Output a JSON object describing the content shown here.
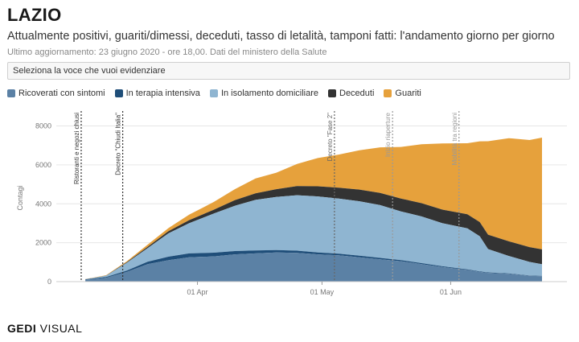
{
  "header": {
    "title": "LAZIO",
    "subtitle": "Attualmente positivi, guariti/dimessi, deceduti, tasso di letalità, tamponi fatti: l'andamento giorno per giorno",
    "updated": "Ultimo aggiornamento: 23 giugno 2020 - ore 18,00. Dati del ministero della Salute"
  },
  "selector": {
    "label": "Seleziona la voce che vuoi evidenziare"
  },
  "brand": {
    "part1": "GEDI",
    "part2": "VISUAL"
  },
  "chart_data": {
    "type": "area",
    "stacked": true,
    "x": [
      "2020-03-05",
      "2020-03-10",
      "2020-03-15",
      "2020-03-20",
      "2020-03-25",
      "2020-03-30",
      "2020-04-05",
      "2020-04-10",
      "2020-04-15",
      "2020-04-20",
      "2020-04-25",
      "2020-04-30",
      "2020-05-05",
      "2020-05-10",
      "2020-05-15",
      "2020-05-20",
      "2020-05-25",
      "2020-05-30",
      "2020-06-05",
      "2020-06-08",
      "2020-06-10",
      "2020-06-15",
      "2020-06-20",
      "2020-06-23"
    ],
    "series": [
      {
        "name": "Ricoverati con sintomi",
        "color": "#5b81a5",
        "values": [
          100,
          200,
          500,
          900,
          1100,
          1250,
          1300,
          1400,
          1450,
          1500,
          1480,
          1400,
          1350,
          1250,
          1150,
          1050,
          900,
          750,
          600,
          500,
          450,
          400,
          300,
          280
        ]
      },
      {
        "name": "In terapia intensiva",
        "color": "#1f4e79",
        "values": [
          20,
          40,
          70,
          120,
          180,
          200,
          190,
          170,
          150,
          120,
          110,
          100,
          90,
          80,
          70,
          60,
          50,
          40,
          30,
          30,
          25,
          20,
          15,
          15
        ]
      },
      {
        "name": "In isolamento domiciliare",
        "color": "#8fb5d1",
        "values": [
          0,
          60,
          400,
          700,
          1200,
          1550,
          2010,
          2330,
          2600,
          2730,
          2850,
          2880,
          2830,
          2800,
          2710,
          2500,
          2400,
          2210,
          2110,
          1800,
          1200,
          900,
          700,
          600
        ]
      },
      {
        "name": "Deceduti",
        "color": "#333333",
        "values": [
          5,
          10,
          30,
          70,
          110,
          160,
          200,
          290,
          340,
          400,
          470,
          520,
          560,
          600,
          630,
          660,
          680,
          700,
          720,
          730,
          740,
          750,
          760,
          765
        ]
      },
      {
        "name": "Guariti",
        "color": "#e6a13c",
        "values": [
          5,
          20,
          50,
          110,
          160,
          280,
          400,
          560,
          760,
          850,
          1140,
          1450,
          1700,
          2020,
          2340,
          2650,
          3030,
          3400,
          3650,
          4150,
          4800,
          5300,
          5500,
          5740
        ]
      }
    ],
    "ylabel": "Contagi",
    "ylim": [
      0,
      8600
    ],
    "y_ticks": [
      0,
      2000,
      4000,
      6000,
      8000
    ],
    "x_ticks": [
      {
        "date": "2020-04-01",
        "label": "01 Apr"
      },
      {
        "date": "2020-05-01",
        "label": "01 May"
      },
      {
        "date": "2020-06-01",
        "label": "01 Jun"
      }
    ],
    "grid": true,
    "annotations": [
      {
        "date": "2020-03-04",
        "label": "Ristoranti e negozi chiusi",
        "color": "#333333"
      },
      {
        "date": "2020-03-14",
        "label": "Decreto \"Chiudi Italia\"",
        "color": "#333333"
      },
      {
        "date": "2020-05-04",
        "label": "Decreto \"Fase 2\"",
        "color": "#666666"
      },
      {
        "date": "2020-05-18",
        "label": "Inizio riaperture",
        "color": "#999999"
      },
      {
        "date": "2020-06-03",
        "label": "Mobilità tra regioni",
        "color": "#999999"
      }
    ]
  }
}
